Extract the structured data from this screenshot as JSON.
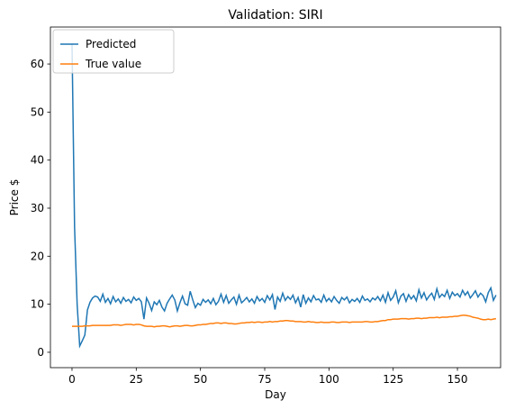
{
  "chart_data": {
    "type": "line",
    "title": "Validation: SIRI",
    "xlabel": "Day",
    "ylabel": "Price $",
    "x": [
      0,
      1,
      2,
      3,
      4,
      5,
      6,
      7,
      8,
      9,
      10,
      11,
      12,
      13,
      14,
      15,
      16,
      17,
      18,
      19,
      20,
      21,
      22,
      23,
      24,
      25,
      26,
      27,
      28,
      29,
      30,
      31,
      32,
      33,
      34,
      35,
      36,
      37,
      38,
      39,
      40,
      41,
      42,
      43,
      44,
      45,
      46,
      47,
      48,
      49,
      50,
      51,
      52,
      53,
      54,
      55,
      56,
      57,
      58,
      59,
      60,
      61,
      62,
      63,
      64,
      65,
      66,
      67,
      68,
      69,
      70,
      71,
      72,
      73,
      74,
      75,
      76,
      77,
      78,
      79,
      80,
      81,
      82,
      83,
      84,
      85,
      86,
      87,
      88,
      89,
      90,
      91,
      92,
      93,
      94,
      95,
      96,
      97,
      98,
      99,
      100,
      101,
      102,
      103,
      104,
      105,
      106,
      107,
      108,
      109,
      110,
      111,
      112,
      113,
      114,
      115,
      116,
      117,
      118,
      119,
      120,
      121,
      122,
      123,
      124,
      125,
      126,
      127,
      128,
      129,
      130,
      131,
      132,
      133,
      134,
      135,
      136,
      137,
      138,
      139,
      140,
      141,
      142,
      143,
      144,
      145,
      146,
      147,
      148,
      149,
      150,
      151,
      152,
      153,
      154,
      155,
      156,
      157,
      158,
      159,
      160,
      161,
      162,
      163,
      164,
      165
    ],
    "series": [
      {
        "name": "Predicted",
        "color": "#1f77b4",
        "values": [
          64.3,
          26,
          10,
          1.3,
          2.4,
          3.6,
          8.8,
          10.4,
          11.3,
          11.7,
          11.5,
          10.6,
          12.1,
          10.4,
          11.2,
          10.1,
          11.6,
          10.5,
          11.1,
          10.2,
          11.4,
          10.6,
          11.0,
          10.3,
          11.5,
          10.8,
          11.2,
          10.5,
          6.9,
          11.3,
          10.2,
          8.7,
          10.5,
          9.9,
          10.8,
          9.4,
          8.6,
          10.2,
          11.1,
          11.9,
          10.9,
          8.6,
          10.3,
          11.7,
          10.1,
          9.8,
          12.7,
          10.9,
          9.3,
          10.2,
          9.8,
          11.0,
          10.4,
          10.9,
          10.1,
          11.2,
          9.9,
          10.6,
          12.1,
          10.4,
          11.8,
          10.2,
          10.9,
          11.5,
          10.0,
          11.9,
          10.3,
          10.8,
          11.4,
          10.5,
          11.1,
          10.2,
          11.6,
          10.7,
          11.2,
          10.4,
          11.8,
          10.9,
          12.0,
          8.9,
          11.5,
          10.6,
          12.3,
          10.8,
          11.6,
          11.0,
          11.9,
          10.3,
          11.4,
          9.4,
          12.0,
          10.2,
          11.3,
          10.5,
          11.8,
          10.9,
          11.1,
          10.4,
          11.9,
          10.6,
          11.2,
          10.5,
          11.6,
          10.8,
          10.2,
          11.4,
          10.9,
          11.5,
          10.3,
          11.0,
          10.6,
          11.2,
          10.4,
          11.7,
          10.8,
          11.1,
          10.5,
          11.3,
          10.9,
          11.6,
          10.7,
          11.9,
          10.4,
          12.4,
          10.8,
          11.5,
          12.8,
          10.3,
          11.7,
          12.2,
          10.6,
          12.0,
          11.1,
          11.8,
          10.7,
          13.0,
          11.3,
          12.4,
          10.9,
          11.7,
          12.3,
          11.0,
          13.2,
          11.4,
          12.1,
          11.6,
          12.9,
          11.2,
          12.5,
          11.8,
          12.2,
          11.5,
          12.9,
          11.9,
          12.6,
          11.3,
          12.0,
          12.8,
          11.5,
          12.3,
          11.8,
          10.5,
          12.4,
          13.4,
          10.8,
          11.9
        ]
      },
      {
        "name": "True value",
        "color": "#ff7f0e",
        "values": [
          5.4,
          5.4,
          5.4,
          5.4,
          5.4,
          5.5,
          5.5,
          5.5,
          5.6,
          5.6,
          5.6,
          5.6,
          5.6,
          5.6,
          5.6,
          5.6,
          5.7,
          5.7,
          5.7,
          5.6,
          5.7,
          5.8,
          5.8,
          5.8,
          5.7,
          5.8,
          5.8,
          5.7,
          5.5,
          5.4,
          5.4,
          5.4,
          5.3,
          5.4,
          5.4,
          5.5,
          5.5,
          5.4,
          5.3,
          5.4,
          5.5,
          5.5,
          5.4,
          5.5,
          5.6,
          5.6,
          5.5,
          5.5,
          5.6,
          5.7,
          5.7,
          5.8,
          5.8,
          5.9,
          6.0,
          6.0,
          6.1,
          6.1,
          6.0,
          6.1,
          6.1,
          6.0,
          6.0,
          5.9,
          5.9,
          6.0,
          6.1,
          6.1,
          6.2,
          6.2,
          6.3,
          6.2,
          6.3,
          6.3,
          6.2,
          6.3,
          6.3,
          6.4,
          6.3,
          6.4,
          6.4,
          6.5,
          6.5,
          6.6,
          6.6,
          6.5,
          6.5,
          6.4,
          6.4,
          6.4,
          6.3,
          6.3,
          6.4,
          6.3,
          6.3,
          6.2,
          6.2,
          6.3,
          6.2,
          6.2,
          6.2,
          6.3,
          6.3,
          6.2,
          6.2,
          6.3,
          6.3,
          6.3,
          6.2,
          6.3,
          6.3,
          6.3,
          6.3,
          6.3,
          6.4,
          6.4,
          6.3,
          6.3,
          6.4,
          6.4,
          6.5,
          6.6,
          6.6,
          6.8,
          6.8,
          6.9,
          6.9,
          6.9,
          7.0,
          7.0,
          7.0,
          6.9,
          7.0,
          7.0,
          7.1,
          7.1,
          7.0,
          7.1,
          7.1,
          7.2,
          7.2,
          7.2,
          7.3,
          7.2,
          7.3,
          7.3,
          7.3,
          7.4,
          7.4,
          7.5,
          7.5,
          7.6,
          7.7,
          7.7,
          7.6,
          7.5,
          7.3,
          7.2,
          7.1,
          6.9,
          6.8,
          6.8,
          6.9,
          6.8,
          6.9,
          7.0
        ]
      }
    ],
    "xlim": [
      -8.4,
      166.8
    ],
    "ylim": [
      -3.2,
      67.7
    ],
    "xticks": [
      0,
      25,
      50,
      75,
      100,
      125,
      150
    ],
    "yticks": [
      0,
      10,
      20,
      30,
      40,
      50,
      60
    ],
    "legend": "upper left"
  }
}
